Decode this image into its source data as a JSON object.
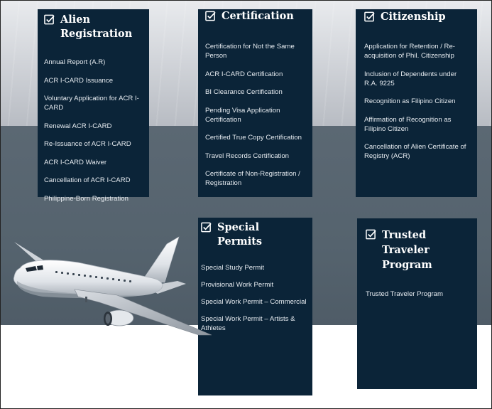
{
  "colors": {
    "card_bg": "#0b2438",
    "text": "#e6ebf0",
    "title": "#ffffff"
  },
  "sections": {
    "alien_registration": {
      "icon": "checkbox-icon",
      "title": "Alien Registration",
      "items": [
        "Annual Report (A.R)",
        "ACR I-CARD Issuance",
        "Voluntary Application for ACR I-CARD",
        "Renewal ACR I-CARD",
        "Re-Issuance of ACR I-CARD",
        "ACR I-CARD Waiver",
        "Cancellation of ACR I-CARD",
        "Philippine-Born Registration"
      ]
    },
    "certification": {
      "icon": "checkbox-icon",
      "title": "Certification",
      "items": [
        "Certification for Not the Same Person",
        "ACR I-CARD Certification",
        "BI Clearance Certification",
        "Pending Visa Application Certification",
        "Certified True Copy Certification",
        "Travel Records Certification",
        "Certificate of Non-Registration / Registration"
      ]
    },
    "citizenship": {
      "icon": "checkbox-icon",
      "title": "Citizenship",
      "items": [
        "Application for Retention / Re-acquisition of Phil. Citizenship",
        "Inclusion of Dependents under R.A. 9225",
        "Recognition as Filipino Citizen",
        "Affirmation of Recognition as Filipino Citizen",
        "Cancellation of Alien Certificate of Registry (ACR)"
      ]
    },
    "special_permits": {
      "icon": "checkbox-icon",
      "title": "Special Permits",
      "items": [
        "Special Study Permit",
        "Provisional Work Permit",
        "Special Work Permit – Commercial",
        "Special Work Permit – Artists & Athletes"
      ]
    },
    "trusted_traveler": {
      "icon": "checkbox-icon",
      "title": "Trusted Traveler Program",
      "items": [
        "Trusted Traveler Program"
      ]
    }
  }
}
